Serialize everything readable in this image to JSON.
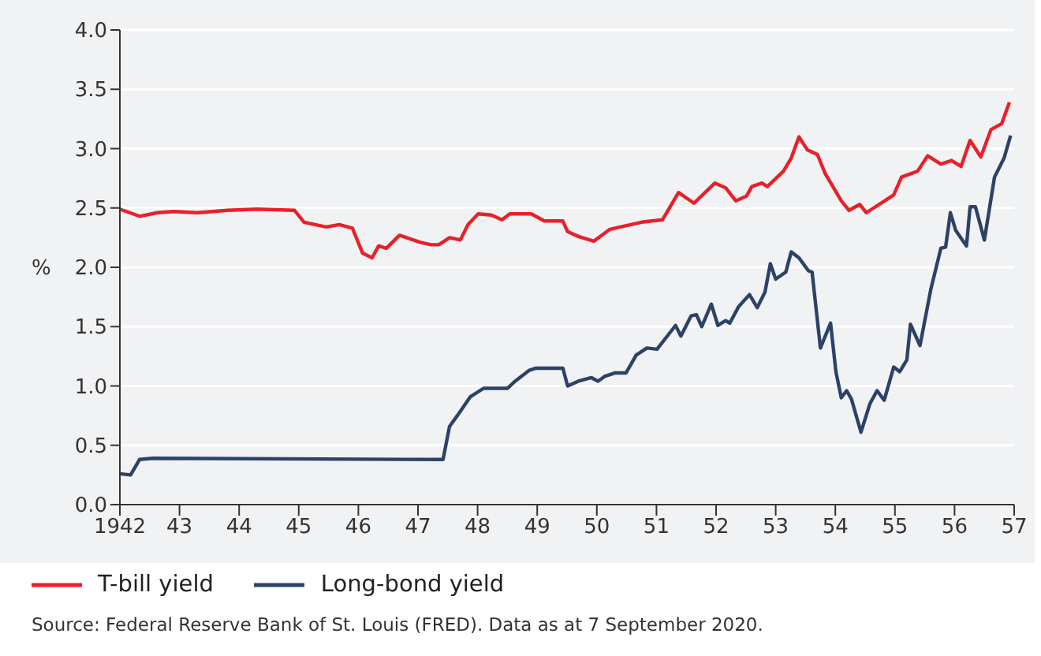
{
  "chart_data": {
    "type": "line",
    "ylabel": "%",
    "xlim": [
      1942,
      1957
    ],
    "ylim": [
      0,
      4
    ],
    "xticks": [
      {
        "value": 1942,
        "label": "1942"
      },
      {
        "value": 1943,
        "label": "43"
      },
      {
        "value": 1944,
        "label": "44"
      },
      {
        "value": 1945,
        "label": "45"
      },
      {
        "value": 1946,
        "label": "46"
      },
      {
        "value": 1947,
        "label": "47"
      },
      {
        "value": 1948,
        "label": "48"
      },
      {
        "value": 1949,
        "label": "49"
      },
      {
        "value": 1950,
        "label": "50"
      },
      {
        "value": 1951,
        "label": "51"
      },
      {
        "value": 1952,
        "label": "52"
      },
      {
        "value": 1953,
        "label": "53"
      },
      {
        "value": 1954,
        "label": "54"
      },
      {
        "value": 1955,
        "label": "55"
      },
      {
        "value": 1956,
        "label": "56"
      },
      {
        "value": 1957,
        "label": "57"
      }
    ],
    "yticks": [
      {
        "value": 0,
        "label": "0.0"
      },
      {
        "value": 0.5,
        "label": "0.5"
      },
      {
        "value": 1,
        "label": "1.0"
      },
      {
        "value": 1.5,
        "label": "1.5"
      },
      {
        "value": 2,
        "label": "2.0"
      },
      {
        "value": 2.5,
        "label": "2.5"
      },
      {
        "value": 3,
        "label": "3.0"
      },
      {
        "value": 3.5,
        "label": "3.5"
      },
      {
        "value": 4,
        "label": "4.0"
      }
    ],
    "grid": "y",
    "legend": "bottom left",
    "marker": "none",
    "line_style": "solid",
    "series": [
      {
        "name": "T-bill yield",
        "color": "#e8202a",
        "x": [
          1942,
          1942.33,
          1942.63,
          1942.9,
          1943.3,
          1943.8,
          1944.3,
          1944.93,
          1945.09,
          1945.46,
          1945.68,
          1945.9,
          1946.07,
          1946.23,
          1946.34,
          1946.47,
          1946.69,
          1947.04,
          1947.22,
          1947.35,
          1947.53,
          1947.71,
          1947.84,
          1948.01,
          1948.23,
          1948.41,
          1948.54,
          1948.9,
          1949.12,
          1949.43,
          1949.51,
          1949.69,
          1949.95,
          1950.22,
          1950.57,
          1950.75,
          1951.1,
          1951.37,
          1951.63,
          1951.98,
          1952.16,
          1952.33,
          1952.51,
          1952.6,
          1952.77,
          1952.86,
          1953.13,
          1953.26,
          1953.39,
          1953.53,
          1953.7,
          1953.83,
          1954.1,
          1954.23,
          1954.41,
          1954.52,
          1954.8,
          1954.98,
          1955.11,
          1955.38,
          1955.55,
          1955.77,
          1955.95,
          1956.11,
          1956.26,
          1956.44,
          1956.61,
          1956.79,
          1956.92
        ],
        "values": [
          2.49,
          2.43,
          2.46,
          2.47,
          2.46,
          2.48,
          2.49,
          2.48,
          2.38,
          2.34,
          2.36,
          2.33,
          2.12,
          2.08,
          2.18,
          2.16,
          2.27,
          2.21,
          2.19,
          2.19,
          2.25,
          2.23,
          2.36,
          2.45,
          2.44,
          2.4,
          2.45,
          2.45,
          2.39,
          2.39,
          2.3,
          2.26,
          2.22,
          2.32,
          2.36,
          2.38,
          2.4,
          2.63,
          2.54,
          2.71,
          2.67,
          2.56,
          2.6,
          2.68,
          2.71,
          2.68,
          2.81,
          2.92,
          3.1,
          2.99,
          2.95,
          2.79,
          2.56,
          2.48,
          2.53,
          2.46,
          2.55,
          2.61,
          2.76,
          2.81,
          2.94,
          2.87,
          2.9,
          2.85,
          3.07,
          2.93,
          3.16,
          3.21,
          3.39
        ]
      },
      {
        "name": "Long-bond yield",
        "color": "#2c4266",
        "x": [
          1942,
          1942.18,
          1942.33,
          1942.55,
          1947.42,
          1947.53,
          1947.66,
          1947.88,
          1948.1,
          1948.5,
          1948.63,
          1948.86,
          1948.98,
          1949.43,
          1949.51,
          1949.69,
          1949.91,
          1950.02,
          1950.13,
          1950.31,
          1950.49,
          1950.66,
          1950.84,
          1951.01,
          1951.32,
          1951.41,
          1951.58,
          1951.67,
          1951.76,
          1951.92,
          1952.03,
          1952.16,
          1952.23,
          1952.38,
          1952.56,
          1952.69,
          1952.82,
          1952.91,
          1953,
          1953.17,
          1953.26,
          1953.39,
          1953.55,
          1953.61,
          1953.75,
          1953.92,
          1954.01,
          1954.1,
          1954.19,
          1954.27,
          1954.43,
          1954.58,
          1954.7,
          1954.82,
          1954.98,
          1955.08,
          1955.2,
          1955.26,
          1955.42,
          1955.6,
          1955.77,
          1955.85,
          1955.93,
          1956.02,
          1956.2,
          1956.26,
          1956.35,
          1956.5,
          1956.67,
          1956.83,
          1956.94
        ],
        "values": [
          0.26,
          0.25,
          0.38,
          0.39,
          0.38,
          0.66,
          0.75,
          0.91,
          0.98,
          0.98,
          1.04,
          1.13,
          1.15,
          1.15,
          1,
          1.04,
          1.07,
          1.04,
          1.08,
          1.11,
          1.11,
          1.26,
          1.32,
          1.31,
          1.51,
          1.42,
          1.59,
          1.6,
          1.5,
          1.69,
          1.51,
          1.55,
          1.53,
          1.67,
          1.77,
          1.66,
          1.79,
          2.03,
          1.9,
          1.96,
          2.13,
          2.08,
          1.97,
          1.96,
          1.32,
          1.53,
          1.12,
          0.9,
          0.96,
          0.89,
          0.61,
          0.85,
          0.96,
          0.88,
          1.16,
          1.12,
          1.22,
          1.52,
          1.34,
          1.81,
          2.16,
          2.17,
          2.46,
          2.31,
          2.18,
          2.51,
          2.51,
          2.23,
          2.76,
          2.92,
          3.11
        ]
      }
    ],
    "annotations": [
      "Source: Federal Reserve Bank of St. Louis (FRED). Data as at 7 September 2020."
    ]
  }
}
